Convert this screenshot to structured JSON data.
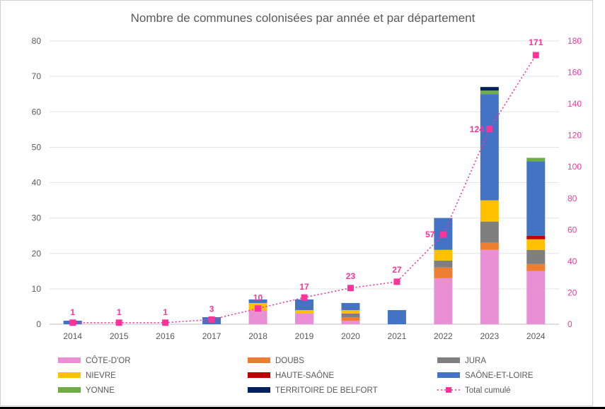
{
  "chart_data": {
    "type": "bar",
    "stacked": true,
    "title": "Nombre de communes colonisées par année et par département",
    "categories": [
      "2014",
      "2015",
      "2016",
      "2017",
      "2018",
      "2019",
      "2020",
      "2021",
      "2022",
      "2023",
      "2024"
    ],
    "y_left": {
      "ylim": [
        0,
        80
      ],
      "ticks": [
        "0",
        "10",
        "20",
        "30",
        "40",
        "50",
        "60",
        "70",
        "80"
      ]
    },
    "y_right": {
      "ylim": [
        0,
        180
      ],
      "ticks": [
        "0",
        "20",
        "40",
        "60",
        "80",
        "100",
        "120",
        "140",
        "160",
        "180"
      ]
    },
    "grid": true,
    "legend_position": "bottom",
    "series": [
      {
        "name": "CÔTE-D'OR",
        "color": "#e88fd5",
        "values": [
          0,
          0,
          0,
          0,
          4,
          3,
          1,
          0,
          13,
          21,
          15
        ]
      },
      {
        "name": "DOUBS",
        "color": "#ed7d31",
        "values": [
          0,
          0,
          0,
          0,
          0,
          0,
          1,
          0,
          3,
          2,
          2
        ]
      },
      {
        "name": "JURA",
        "color": "#7f7f7f",
        "values": [
          0,
          0,
          0,
          0,
          0,
          0,
          1,
          0,
          2,
          6,
          4
        ]
      },
      {
        "name": "NIEVRE",
        "color": "#ffc000",
        "values": [
          0,
          0,
          0,
          0,
          2,
          1,
          1,
          0,
          3,
          6,
          3
        ]
      },
      {
        "name": "HAUTE-SAÔNE",
        "color": "#c00000",
        "values": [
          0,
          0,
          0,
          0,
          0,
          0,
          0,
          0,
          0,
          0,
          1
        ]
      },
      {
        "name": "SAÔNE-ET-LOIRE",
        "color": "#4472c4",
        "values": [
          1,
          0,
          0,
          2,
          1,
          3,
          2,
          4,
          9,
          30,
          21
        ]
      },
      {
        "name": "YONNE",
        "color": "#70ad47",
        "values": [
          0,
          0,
          0,
          0,
          0,
          0,
          0,
          0,
          0,
          1,
          1
        ]
      },
      {
        "name": "TERRITOIRE DE BELFORT",
        "color": "#002060",
        "values": [
          0,
          0,
          0,
          0,
          0,
          0,
          0,
          0,
          0,
          1,
          0
        ]
      }
    ],
    "line_series": {
      "name": "Total cumulé",
      "color": "#ff3399",
      "axis": "right",
      "values": [
        1,
        1,
        1,
        3,
        10,
        17,
        23,
        27,
        57,
        124,
        171
      ],
      "labels": [
        "1",
        "1",
        "1",
        "3",
        "10",
        "17",
        "23",
        "27",
        "57",
        "124",
        "171"
      ]
    }
  }
}
